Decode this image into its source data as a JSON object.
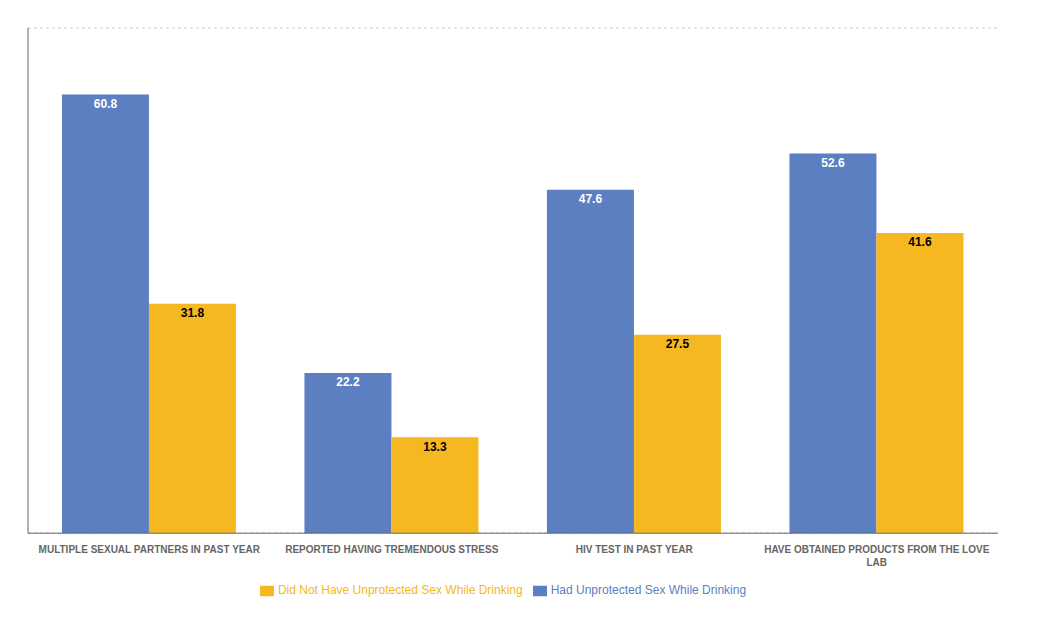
{
  "chart_data": {
    "type": "bar",
    "categories": [
      "MULTIPLE SEXUAL PARTNERS IN PAST YEAR",
      "REPORTED HAVING TREMENDOUS STRESS",
      "HIV TEST IN PAST YEAR",
      "HAVE OBTAINED PRODUCTS FROM THE LOVE\nLAB"
    ],
    "series": [
      {
        "name": "Had Unprotected Sex While Drinking",
        "color": "#5B7FC1",
        "values": [
          60.8,
          22.2,
          47.6,
          52.6
        ]
      },
      {
        "name": "Did Not Have Unprotected Sex While Drinking",
        "color": "#F5B820",
        "values": [
          31.8,
          13.3,
          27.5,
          41.6
        ]
      }
    ],
    "ylim": [
      0,
      70
    ],
    "yticks": [
      0,
      10,
      20,
      30,
      40,
      50,
      60,
      70
    ],
    "grid": true,
    "legend": "bottom",
    "data_labels": true,
    "tick_labels": "x"
  }
}
